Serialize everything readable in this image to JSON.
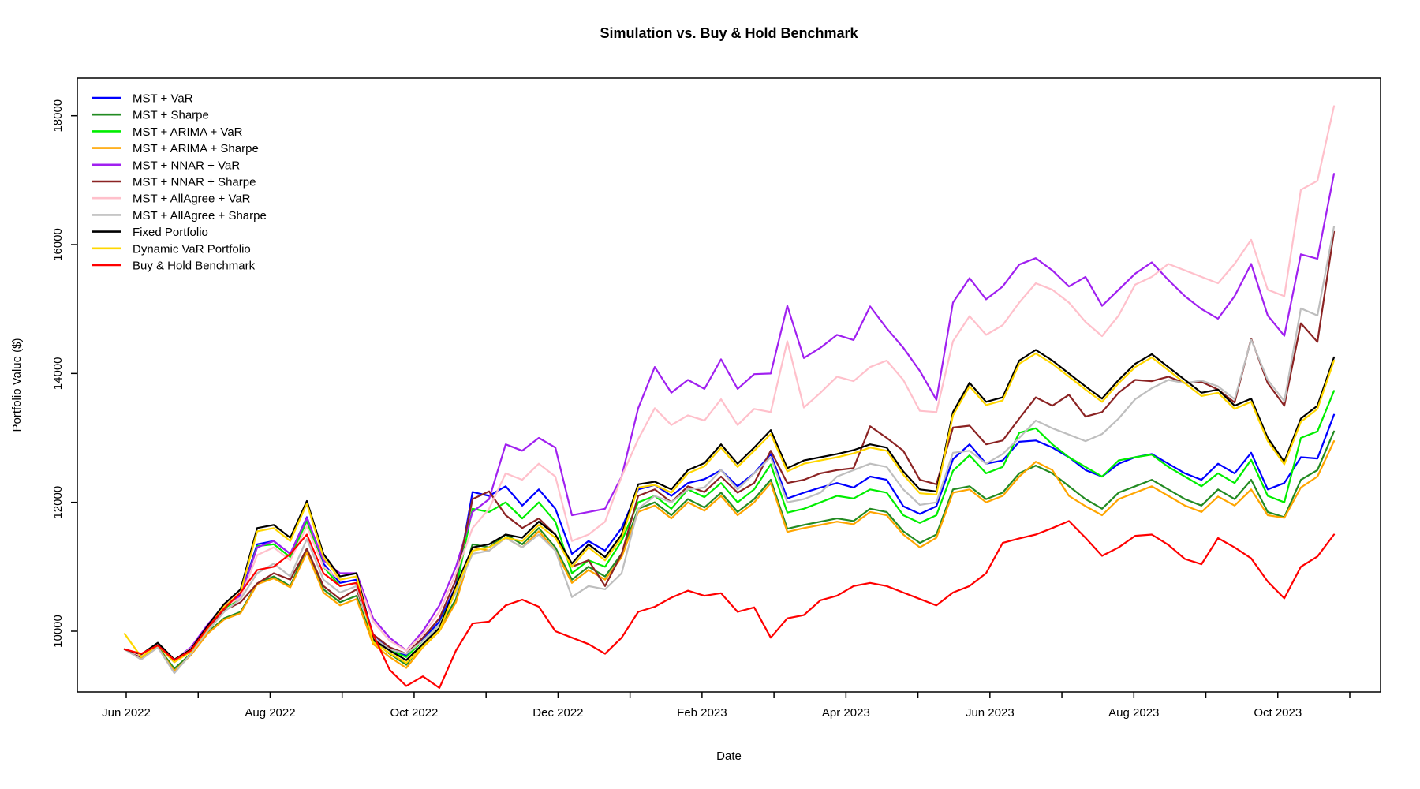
{
  "chart_data": {
    "type": "line",
    "title": "Simulation vs. Buy & Hold Benchmark",
    "xlabel": "Date",
    "ylabel": "Portfolio Value ($)",
    "grid": false,
    "legend_position": "topleft",
    "x_unit": "weekly samples, Jun 2022 through late Oct 2023",
    "x_tick_labels": [
      "Jun 2022",
      "Aug 2022",
      "Oct 2022",
      "Dec 2022",
      "Feb 2023",
      "Apr 2023",
      "Jun 2023",
      "Aug 2023",
      "Oct 2023"
    ],
    "x_minor_tick_count": 18,
    "yticks": [
      10000,
      12000,
      14000,
      16000,
      18000
    ],
    "ylim": [
      9057,
      18585
    ],
    "series": [
      {
        "name": "MST + VaR",
        "color": "#0000FF",
        "values": [
          9720,
          9630,
          9800,
          9550,
          9720,
          10060,
          10380,
          10560,
          11350,
          11400,
          11200,
          11770,
          11050,
          10750,
          10800,
          9950,
          9730,
          9620,
          9870,
          10150,
          10700,
          12160,
          12100,
          12250,
          11950,
          12200,
          11900,
          11200,
          11400,
          11250,
          11600,
          12200,
          12270,
          12100,
          12300,
          12360,
          12500,
          12250,
          12450,
          12750,
          12060,
          12150,
          12230,
          12300,
          12230,
          12400,
          12350,
          11940,
          11820,
          11940,
          12670,
          12900,
          12600,
          12650,
          12940,
          12960,
          12850,
          12700,
          12500,
          12400,
          12600,
          12700,
          12750,
          12600,
          12450,
          12350,
          12600,
          12450,
          12770,
          12200,
          12300,
          12700,
          12680,
          13360
        ]
      },
      {
        "name": "MST + Sharpe",
        "color": "#228B22",
        "values": [
          9720,
          9580,
          9760,
          9420,
          9650,
          9980,
          10200,
          10300,
          10740,
          10850,
          10700,
          11280,
          10650,
          10450,
          10550,
          9850,
          9650,
          9480,
          9800,
          10050,
          10500,
          11350,
          11300,
          11500,
          11350,
          11600,
          11300,
          10800,
          11000,
          10850,
          11200,
          11900,
          12000,
          11800,
          12050,
          11920,
          12150,
          11850,
          12050,
          12350,
          11590,
          11650,
          11700,
          11750,
          11710,
          11900,
          11850,
          11550,
          11370,
          11500,
          12200,
          12250,
          12050,
          12150,
          12450,
          12570,
          12450,
          12250,
          12050,
          11900,
          12150,
          12250,
          12350,
          12200,
          12050,
          11950,
          12200,
          12050,
          12350,
          11850,
          11770,
          12350,
          12500,
          13100
        ]
      },
      {
        "name": "MST + ARIMA + VaR",
        "color": "#00EE00",
        "values": [
          9720,
          9610,
          9790,
          9530,
          9700,
          10040,
          10350,
          10520,
          11320,
          11350,
          11150,
          11710,
          11000,
          10700,
          10750,
          9900,
          9700,
          9600,
          9850,
          10100,
          10650,
          11900,
          11850,
          12000,
          11750,
          12000,
          11700,
          10900,
          11100,
          11000,
          11400,
          12000,
          12100,
          11900,
          12200,
          12080,
          12300,
          12000,
          12200,
          12590,
          11840,
          11900,
          12000,
          12100,
          12060,
          12200,
          12150,
          11800,
          11680,
          11800,
          12490,
          12730,
          12450,
          12550,
          13080,
          13150,
          12900,
          12700,
          12550,
          12400,
          12650,
          12700,
          12740,
          12550,
          12400,
          12250,
          12450,
          12300,
          12660,
          12100,
          12000,
          13000,
          13100,
          13730
        ]
      },
      {
        "name": "MST + ARIMA + Sharpe",
        "color": "#FFA500",
        "values": [
          9720,
          9570,
          9750,
          9380,
          9630,
          9960,
          10180,
          10280,
          10730,
          10820,
          10680,
          11220,
          10600,
          10400,
          10500,
          9800,
          9600,
          9430,
          9750,
          10000,
          10450,
          11300,
          11250,
          11450,
          11300,
          11550,
          11250,
          10750,
          10950,
          10800,
          11150,
          11850,
          11950,
          11750,
          12000,
          11870,
          12100,
          11800,
          12000,
          12300,
          11540,
          11600,
          11650,
          11700,
          11660,
          11850,
          11800,
          11500,
          11300,
          11450,
          12150,
          12200,
          12000,
          12100,
          12400,
          12630,
          12500,
          12100,
          11940,
          11800,
          12050,
          12150,
          12250,
          12100,
          11950,
          11850,
          12090,
          11950,
          12200,
          11800,
          11760,
          12230,
          12400,
          12950
        ]
      },
      {
        "name": "MST + NNAR + VaR",
        "color": "#A020F0",
        "values": [
          9720,
          9600,
          9800,
          9550,
          9750,
          10100,
          10400,
          10550,
          11300,
          11400,
          11200,
          11760,
          11100,
          10900,
          10900,
          10200,
          9900,
          9700,
          10000,
          10400,
          11000,
          11850,
          12050,
          12900,
          12800,
          13000,
          12850,
          11800,
          11850,
          11900,
          12400,
          13460,
          14100,
          13700,
          13900,
          13760,
          14220,
          13760,
          13990,
          14000,
          15050,
          14240,
          14400,
          14600,
          14520,
          15040,
          14700,
          14400,
          14040,
          13590,
          15100,
          15480,
          15150,
          15350,
          15690,
          15790,
          15600,
          15350,
          15500,
          15050,
          15300,
          15550,
          15725,
          15450,
          15200,
          15000,
          14850,
          15200,
          15700,
          14900,
          14585,
          15850,
          15780,
          17100
        ]
      },
      {
        "name": "MST + NNAR + Sharpe",
        "color": "#8B2323",
        "values": [
          9720,
          9600,
          9780,
          9520,
          9700,
          10050,
          10320,
          10450,
          10740,
          10900,
          10800,
          11280,
          10700,
          10500,
          10650,
          9950,
          9750,
          9650,
          9900,
          10200,
          10800,
          12050,
          12170,
          11800,
          11600,
          11750,
          11500,
          11000,
          11100,
          10700,
          11200,
          12100,
          12200,
          12000,
          12250,
          12160,
          12400,
          12150,
          12300,
          12800,
          12300,
          12350,
          12450,
          12500,
          12530,
          13180,
          13000,
          12800,
          12350,
          12280,
          13160,
          13190,
          12900,
          12960,
          13300,
          13630,
          13500,
          13670,
          13330,
          13400,
          13700,
          13900,
          13880,
          13950,
          13850,
          13870,
          13750,
          13550,
          14540,
          13850,
          13500,
          14780,
          14490,
          16200
        ]
      },
      {
        "name": "MST + AllAgree + VaR",
        "color": "#FFC0CB",
        "values": [
          9720,
          9620,
          9790,
          9560,
          9730,
          10060,
          10380,
          10520,
          11180,
          11300,
          11100,
          11630,
          11000,
          10800,
          10850,
          10150,
          9850,
          9700,
          9950,
          10300,
          10900,
          11600,
          11900,
          12450,
          12350,
          12600,
          12400,
          11400,
          11500,
          11700,
          12400,
          12980,
          13460,
          13200,
          13350,
          13270,
          13600,
          13200,
          13450,
          13400,
          14500,
          13470,
          13700,
          13950,
          13880,
          14100,
          14200,
          13900,
          13420,
          13400,
          14500,
          14890,
          14600,
          14750,
          15100,
          15400,
          15300,
          15100,
          14800,
          14580,
          14900,
          15380,
          15500,
          15700,
          15600,
          15500,
          15400,
          15700,
          16075,
          15300,
          15200,
          16850,
          16990,
          18150
        ]
      },
      {
        "name": "MST + AllAgree + Sharpe",
        "color": "#BEBEBE",
        "values": [
          9720,
          9560,
          9750,
          9350,
          9650,
          10000,
          10300,
          10500,
          10900,
          11050,
          10850,
          11430,
          10800,
          10600,
          10700,
          9900,
          9720,
          9650,
          9850,
          10100,
          10600,
          11200,
          11250,
          11450,
          11300,
          11500,
          11250,
          10530,
          10700,
          10650,
          10900,
          11900,
          12100,
          12000,
          12200,
          12230,
          12500,
          12200,
          12450,
          12700,
          12000,
          12050,
          12150,
          12400,
          12500,
          12600,
          12550,
          12200,
          11960,
          12000,
          12770,
          12800,
          12600,
          12750,
          13000,
          13270,
          13150,
          13050,
          12950,
          13060,
          13300,
          13600,
          13770,
          13900,
          13850,
          13890,
          13800,
          13600,
          14525,
          13900,
          13570,
          15010,
          14900,
          16280
        ]
      },
      {
        "name": "Fixed Portfolio",
        "color": "#000000",
        "values": [
          9720,
          9640,
          9820,
          9560,
          9720,
          10080,
          10420,
          10650,
          11600,
          11650,
          11450,
          12020,
          11200,
          10850,
          10900,
          9870,
          9700,
          9550,
          9800,
          10050,
          10700,
          11300,
          11350,
          11500,
          11450,
          11700,
          11500,
          11050,
          11350,
          11150,
          11500,
          12280,
          12320,
          12200,
          12500,
          12610,
          12900,
          12600,
          12850,
          13120,
          12530,
          12650,
          12700,
          12750,
          12810,
          12900,
          12850,
          12480,
          12200,
          12170,
          13400,
          13855,
          13560,
          13630,
          14200,
          14365,
          14200,
          14000,
          13800,
          13610,
          13900,
          14150,
          14300,
          14100,
          13900,
          13700,
          13750,
          13500,
          13610,
          13000,
          12630,
          13300,
          13500,
          14250
        ]
      },
      {
        "name": "Dynamic VaR Portfolio",
        "color": "#FFD700",
        "values": [
          9960,
          9600,
          9780,
          9520,
          9680,
          10040,
          10380,
          10600,
          11550,
          11600,
          11400,
          11980,
          11150,
          10800,
          10850,
          9830,
          9660,
          9510,
          9760,
          10010,
          10650,
          11250,
          11300,
          11450,
          11400,
          11650,
          11450,
          11000,
          11300,
          11100,
          11450,
          12230,
          12270,
          12150,
          12450,
          12560,
          12850,
          12550,
          12800,
          13060,
          12480,
          12600,
          12650,
          12700,
          12760,
          12850,
          12800,
          12430,
          12140,
          12120,
          13350,
          13800,
          13510,
          13580,
          14150,
          14310,
          14150,
          13950,
          13750,
          13560,
          13850,
          14100,
          14250,
          14050,
          13850,
          13650,
          13700,
          13450,
          13560,
          12950,
          12590,
          13250,
          13450,
          14200
        ]
      },
      {
        "name": "Buy & Hold Benchmark",
        "color": "#FF0000",
        "values": [
          9720,
          9650,
          9780,
          9550,
          9700,
          10050,
          10350,
          10600,
          10950,
          11000,
          11200,
          11500,
          10900,
          10700,
          10750,
          9950,
          9400,
          9150,
          9300,
          9120,
          9700,
          10120,
          10150,
          10400,
          10490,
          10380,
          10000,
          9900,
          9800,
          9650,
          9900,
          10300,
          10380,
          10520,
          10630,
          10550,
          10590,
          10300,
          10370,
          9900,
          10200,
          10250,
          10480,
          10550,
          10700,
          10750,
          10700,
          10600,
          10500,
          10400,
          10600,
          10700,
          10900,
          11370,
          11440,
          11500,
          11600,
          11710,
          11450,
          11170,
          11300,
          11480,
          11500,
          11340,
          11120,
          11040,
          11445,
          11300,
          11130,
          10770,
          10510,
          11000,
          11160,
          11500
        ]
      }
    ]
  }
}
